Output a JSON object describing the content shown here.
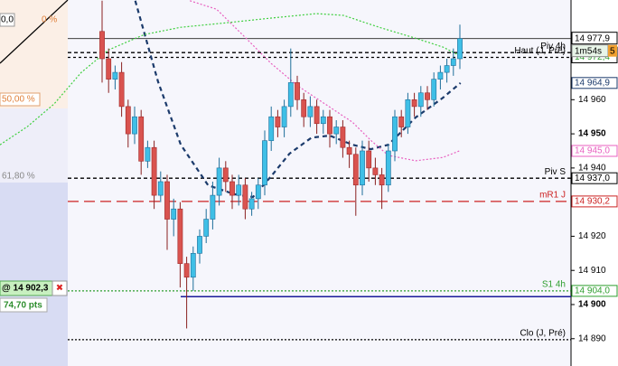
{
  "chart_data": {
    "type": "candlestick",
    "ylim": [
      14882,
      14989.2
    ],
    "yticks": [
      {
        "value": 14960,
        "label": "14 960"
      },
      {
        "value": 14950,
        "label": "14 950"
      },
      {
        "value": 14940,
        "label": "14 940"
      },
      {
        "value": 14920,
        "label": "14 920"
      },
      {
        "value": 14910,
        "label": "14 910"
      },
      {
        "value": 14900,
        "label": "14 900"
      },
      {
        "value": 14890,
        "label": "14 890"
      }
    ],
    "bold_ticks": [
      14950,
      14900
    ],
    "up_color": "#3fbfe6",
    "down_color": "#d9534f",
    "open": [
      14980,
      14972,
      14966,
      14968,
      14958,
      14950,
      14955,
      14942,
      14946,
      14932,
      14936,
      14925,
      14928,
      14912,
      14908,
      14915,
      14920,
      14925,
      14932,
      14940,
      14936,
      14932,
      14935,
      14928,
      14931,
      14935,
      14948,
      14955,
      14952,
      14958,
      14965,
      14960,
      14955,
      14958,
      14953,
      14955,
      14950,
      14952,
      14946,
      14944,
      14935,
      14945,
      14940,
      14938,
      14935,
      14945,
      14955,
      14952,
      14960,
      14958,
      14962,
      14960,
      14966,
      14968,
      14970,
      14972
    ],
    "high": [
      14989,
      14975,
      14970,
      14971,
      14960,
      14958,
      14957,
      14948,
      14948,
      14939,
      14938,
      14931,
      14930,
      14914,
      14917,
      14922,
      14928,
      14936,
      14943,
      14942,
      14938,
      14938,
      14937,
      14933,
      14937,
      14951,
      14958,
      14957,
      14960,
      14975,
      14967,
      14962,
      14961,
      14960,
      14957,
      14957,
      14954,
      14954,
      14948,
      14946,
      14948,
      14948,
      14943,
      14940,
      14947,
      14957,
      14957,
      14962,
      14962,
      14964,
      14964,
      14968,
      14970,
      14972,
      14975,
      14982
    ],
    "low": [
      14965,
      14962,
      14963,
      14955,
      14946,
      14947,
      14938,
      14940,
      14928,
      14930,
      14916,
      14920,
      14905,
      14893,
      14904,
      14912,
      14918,
      14922,
      14929,
      14933,
      14928,
      14929,
      14925,
      14926,
      14928,
      14932,
      14945,
      14949,
      14949,
      14955,
      14957,
      14952,
      14952,
      14950,
      14950,
      14946,
      14947,
      14943,
      14940,
      14926,
      14932,
      14936,
      14935,
      14928,
      14933,
      14942,
      14949,
      14950,
      14955,
      14955,
      14957,
      14958,
      14963,
      14965,
      14967,
      14969
    ],
    "close": [
      14972,
      14966,
      14968,
      14958,
      14950,
      14955,
      14942,
      14946,
      14932,
      14936,
      14925,
      14928,
      14912,
      14908,
      14915,
      14920,
      14925,
      14932,
      14940,
      14936,
      14932,
      14935,
      14928,
      14931,
      14935,
      14948,
      14955,
      14952,
      14958,
      14965,
      14960,
      14955,
      14958,
      14953,
      14955,
      14950,
      14952,
      14946,
      14944,
      14935,
      14945,
      14940,
      14938,
      14935,
      14945,
      14955,
      14952,
      14960,
      14958,
      14962,
      14960,
      14966,
      14968,
      14970,
      14972,
      14977.9
    ],
    "ma_lines": [
      {
        "color": "#1b3a6b",
        "dash": "5,4",
        "width": 2.2,
        "x": [
          5.1,
          8.6,
          12.1,
          16.3,
          20.4,
          23.2,
          26.0,
          28.8,
          32.2,
          35.0,
          38.5,
          41.3,
          44.0,
          48.2,
          52.4,
          55.1
        ],
        "values": [
          14989,
          14965.3,
          14946.8,
          14934.9,
          14932.3,
          14931.5,
          14937.6,
          14944.2,
          14948.9,
          14949.5,
          14946.8,
          14945.5,
          14946.8,
          14954.8,
          14960.6,
          14964.9
        ],
        "last_label": "14 964,9"
      },
      {
        "color": "#e860c0",
        "dash": "2,2",
        "width": 1.2,
        "x": [
          13.5,
          17.6,
          21.8,
          26.0,
          30.1,
          34.3,
          38.5,
          41.3,
          44.0,
          48.2,
          52.4,
          54.9
        ],
        "values": [
          14989,
          14986.5,
          14978.6,
          14970.6,
          14964.0,
          14958.7,
          14953.4,
          14948.1,
          14943.7,
          14942.1,
          14943.1,
          14945.0
        ],
        "last_label": "14 945,0"
      },
      {
        "color": "#3fcf3f",
        "dash": "2,2",
        "width": 1.2,
        "x": [
          -15.7,
          -11.5,
          -7.4,
          -3.2,
          1.0,
          6.5,
          12.1,
          19.0,
          26.0,
          32.9,
          37.1,
          42.6,
          48.2,
          52.4,
          55.1
        ],
        "values": [
          14946.8,
          14952.1,
          14958.7,
          14968.0,
          14974.6,
          14979.1,
          14981.2,
          14982.5,
          14983.9,
          14985.2,
          14984.7,
          14981.2,
          14978.0,
          14975.4,
          14972.8
        ]
      }
    ],
    "levels": [
      {
        "name": "Piv 4h",
        "value": 14973.8,
        "value_label": "14 973,8",
        "color": "#000000",
        "dash": "4,3"
      },
      {
        "name": "Haut (J, Pré)",
        "value": 14972.4,
        "value_label": "14 972,4",
        "color": "#000000",
        "label_color": "#2e9e2e",
        "dash": "3,3"
      },
      {
        "name": "Piv S",
        "value": 14937.0,
        "value_label": "14 937,0",
        "color": "#000000",
        "dash": "4,3"
      },
      {
        "name": "mR1 J",
        "value": 14930.2,
        "value_label": "14 930,2",
        "color": "#cc2222",
        "dash": "12,6"
      },
      {
        "name": "S1 4h",
        "value": 14904.0,
        "value_label": "14 904,0",
        "color": "#2e9e2e",
        "dash": "2,2"
      },
      {
        "name": "Clo (J, Pré)",
        "value": 14889.7,
        "color": "#000000",
        "dash": "2,2"
      }
    ],
    "last_price": 14977.9,
    "last_price_label": "14 977,9",
    "countdown": "1m54s",
    "countdown_suffix": "5",
    "order": {
      "price": 14902.3,
      "label": "@ 14 902,3",
      "pts": "74,70 pts",
      "close_icon": "✖"
    },
    "fib_labels": [
      "0,0",
      "0 %",
      "50,00 %",
      "61,80 %"
    ]
  }
}
